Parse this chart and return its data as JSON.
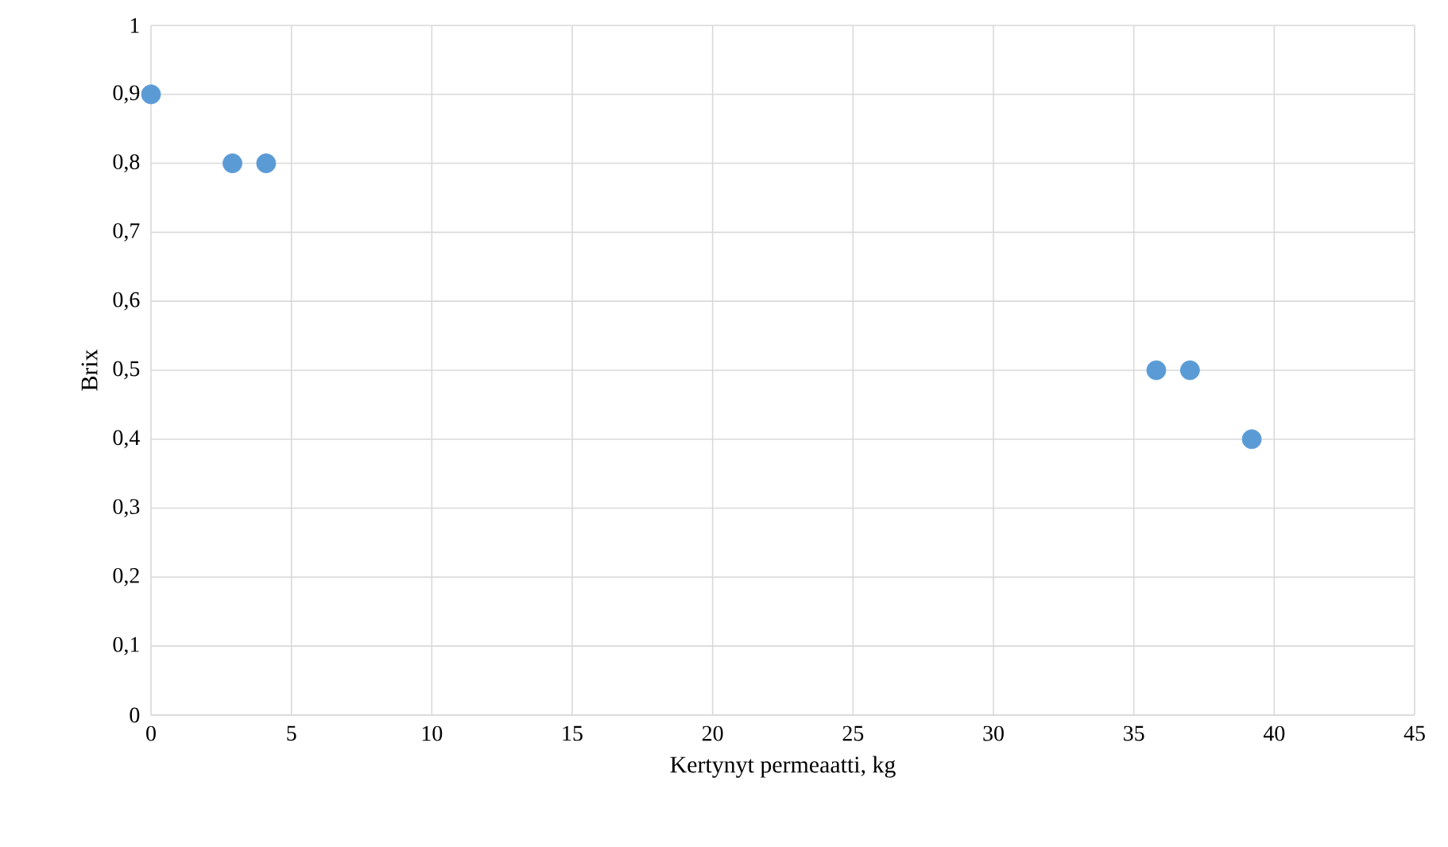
{
  "chart_data": {
    "type": "scatter",
    "xlabel": "Kertynyt permeaatti, kg",
    "ylabel": "Brix",
    "x": [
      0,
      2.9,
      4.1,
      35.8,
      37,
      39.2
    ],
    "series": [
      {
        "color": "#5b9bd5",
        "values": [
          0.9,
          0.8,
          0.8,
          0.5,
          0.5,
          0.4
        ]
      }
    ],
    "xlim": [
      0,
      45
    ],
    "xticks": [
      0,
      5,
      10,
      15,
      20,
      25,
      30,
      35,
      40,
      45
    ],
    "ylim": [
      0,
      1
    ],
    "yticks": [
      0,
      {
        "value": 0.1,
        "label": "0,1"
      },
      {
        "value": 0.2,
        "label": "0,2"
      },
      {
        "value": 0.3,
        "label": "0,3"
      },
      {
        "value": 0.4,
        "label": "0,4"
      },
      {
        "value": 0.5,
        "label": "0,5"
      },
      {
        "value": 0.6,
        "label": "0,6"
      },
      {
        "value": 0.7,
        "label": "0,7"
      },
      {
        "value": 0.8,
        "label": "0,8"
      },
      {
        "value": 0.9,
        "label": "0,9"
      },
      1
    ],
    "grid": true,
    "marker": "circle"
  }
}
